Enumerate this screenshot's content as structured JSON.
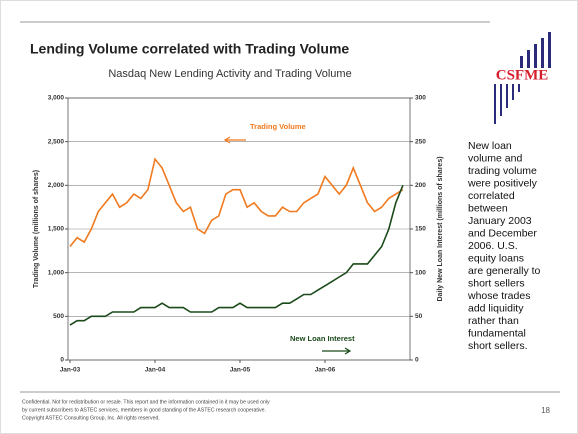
{
  "chart_data": {
    "type": "line",
    "title": "Lending Volume correlated with Trading Volume",
    "subtitle": "Nasdaq New Lending Activity and Trading Volume",
    "ylabel": "Trading Volume (millions of shares)",
    "y2label": "Daily New Loan Interest (millions of shares)",
    "categories": [
      "Jan-03",
      null,
      null,
      null,
      null,
      null,
      null,
      null,
      null,
      null,
      null,
      null,
      "Jan-04",
      null,
      null,
      null,
      null,
      null,
      null,
      null,
      null,
      null,
      null,
      null,
      "Jan-05",
      null,
      null,
      null,
      null,
      null,
      null,
      null,
      null,
      null,
      null,
      null,
      "Jan-06",
      null,
      null,
      null,
      null,
      null,
      null,
      null,
      null,
      null,
      null,
      null
    ],
    "series": [
      {
        "name": "Trading Volume",
        "color": "#f27a1e",
        "values": [
          1300,
          1400,
          1350,
          1500,
          1700,
          1800,
          1900,
          1750,
          1800,
          1900,
          1850,
          1950,
          2300,
          2200,
          2000,
          1800,
          1700,
          1750,
          1500,
          1450,
          1600,
          1650,
          1900,
          1950,
          1950,
          1750,
          1800,
          1700,
          1650,
          1650,
          1750,
          1700,
          1700,
          1800,
          1850,
          1900,
          2100,
          2000,
          1900,
          2000,
          2200,
          2000,
          1800,
          1700,
          1750,
          1850,
          1900,
          1950
        ]
      },
      {
        "name": "New Loan Interest",
        "color": "#1b4a1b",
        "axis": "y2",
        "values": [
          40,
          45,
          45,
          50,
          50,
          50,
          55,
          55,
          55,
          55,
          60,
          60,
          60,
          65,
          60,
          60,
          60,
          55,
          55,
          55,
          55,
          60,
          60,
          60,
          65,
          60,
          60,
          60,
          60,
          60,
          65,
          65,
          70,
          75,
          75,
          80,
          85,
          90,
          95,
          100,
          110,
          110,
          110,
          120,
          130,
          150,
          180,
          200
        ]
      }
    ],
    "ylim": [
      0,
      3000
    ],
    "yticks": [
      0,
      500,
      {
        "value": 1000,
        "label": "1,000"
      },
      {
        "value": 1500,
        "label": "1,500"
      },
      {
        "value": 2000,
        "label": "2,000"
      },
      {
        "value": 2500,
        "label": "2,500"
      },
      {
        "value": 3000,
        "label": "3,000"
      }
    ],
    "y2lim": [
      0,
      300
    ],
    "y2ticks": [
      0,
      50,
      100,
      150,
      200,
      250,
      300
    ],
    "grid": true
  },
  "slide": {
    "logo": "CSFME",
    "side_text": [
      "New loan",
      "volume and",
      "trading volume",
      "were positively",
      "correlated",
      "between",
      "January 2003",
      "and December",
      "2006.  U.S.",
      "equity loans",
      "are generally to",
      "short sellers",
      "whose trades",
      "add liquidity",
      "rather than",
      "fundamental",
      "short sellers."
    ],
    "footer": [
      "Confidential.  Not for redistribution or resale.  This report and the information contained in it may be used only",
      "by current subscribers to ASTEC services, members in good standing of the ASTEC research cooperative.",
      "Copyright ASTEC Consulting Group, Inc.  All rights reserved."
    ],
    "page_number": "18"
  }
}
